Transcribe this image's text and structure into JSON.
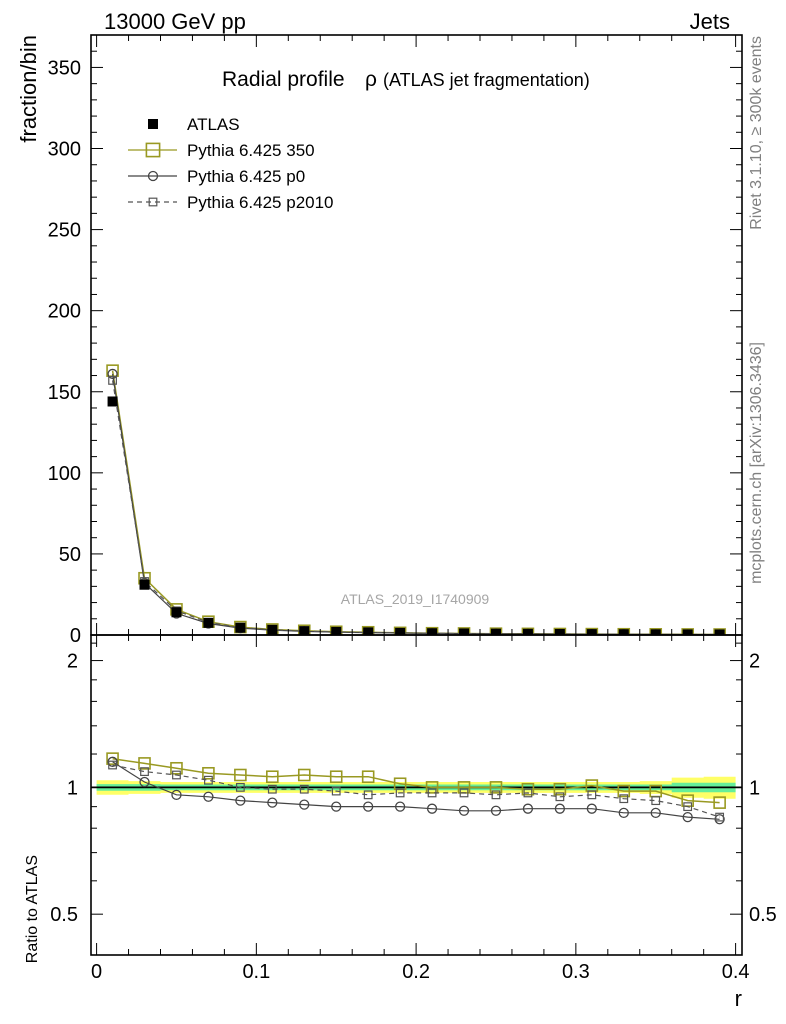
{
  "header": {
    "energy_label": "13000 GeV pp",
    "process_label": "Jets"
  },
  "side_labels": {
    "rivet": "Rivet 3.1.10, ≥ 300k events",
    "mcplots": "mcplots.cern.ch [arXiv:1306.3436]"
  },
  "watermark": "ATLAS_2019_I1740909",
  "chart_data": {
    "type": "scatter",
    "title": "Radial profile",
    "title_symbol": "ρ",
    "subtitle": "(ATLAS jet fragmentation)",
    "xlabel": "r",
    "ylabel": "fraction/bin",
    "ratio_ylabel": "Ratio to ATLAS",
    "xlim": [
      -0.0035,
      0.404
    ],
    "ylim": [
      0,
      370
    ],
    "ratio_ylim": [
      0.4,
      2.3
    ],
    "ratio_scale": "log",
    "grid": false,
    "legend_placement": "top-left",
    "x_ticks": [
      0,
      0.1,
      0.2,
      0.3,
      0.4
    ],
    "x_tick_labels": [
      "0",
      "0.1",
      "0.2",
      "0.3",
      "0.4"
    ],
    "y_ticks": [
      0,
      50,
      100,
      150,
      200,
      250,
      300,
      350
    ],
    "y_tick_labels": [
      "0",
      "50",
      "100",
      "150",
      "200",
      "250",
      "300",
      "350"
    ],
    "ratio_ticks": [
      0.5,
      1,
      2
    ],
    "ratio_tick_labels": [
      "0.5",
      "1",
      "2"
    ],
    "x": [
      0.01,
      0.03,
      0.05,
      0.07,
      0.09,
      0.11,
      0.13,
      0.15,
      0.17,
      0.19,
      0.21,
      0.23,
      0.25,
      0.27,
      0.29,
      0.31,
      0.33,
      0.35,
      0.37,
      0.39
    ],
    "reference_band": {
      "inner_half_width": [
        0.018,
        0.018,
        0.016,
        0.016,
        0.016,
        0.016,
        0.016,
        0.016,
        0.016,
        0.016,
        0.016,
        0.016,
        0.016,
        0.016,
        0.016,
        0.016,
        0.016,
        0.016,
        0.026,
        0.026
      ],
      "outer_half_width": [
        0.04,
        0.035,
        0.03,
        0.03,
        0.03,
        0.03,
        0.03,
        0.03,
        0.03,
        0.03,
        0.03,
        0.03,
        0.03,
        0.03,
        0.03,
        0.03,
        0.03,
        0.035,
        0.055,
        0.06
      ],
      "inner_color": "#66ee99",
      "outer_color": "#ffff66"
    },
    "series": [
      {
        "name": "ATLAS",
        "style": "data",
        "color": "#000000",
        "values": [
          144,
          31,
          14,
          7.5,
          4.5,
          3.2,
          2.4,
          1.9,
          1.6,
          1.3,
          1.1,
          0.95,
          0.82,
          0.72,
          0.63,
          0.55,
          0.48,
          0.42,
          0.37,
          0.33
        ]
      },
      {
        "name": "Pythia 6.425 350",
        "style": "open-square",
        "color": "#999922",
        "values": [
          163,
          35,
          15.8,
          8.2,
          4.9,
          3.4,
          2.6,
          2.0,
          1.7,
          1.33,
          1.1,
          0.95,
          0.82,
          0.71,
          0.63,
          0.56,
          0.475,
          0.41,
          0.345,
          0.305
        ],
        "ratio": [
          1.17,
          1.14,
          1.11,
          1.08,
          1.07,
          1.06,
          1.07,
          1.06,
          1.06,
          1.02,
          1.0,
          1.0,
          1.0,
          0.99,
          0.99,
          1.01,
          0.98,
          0.98,
          0.93,
          0.92
        ]
      },
      {
        "name": "Pythia 6.425 p0",
        "style": "open-circle",
        "color": "#444444",
        "values": [
          161,
          32,
          13.3,
          7.1,
          4.2,
          3.0,
          2.2,
          1.74,
          1.47,
          1.21,
          1.0,
          0.86,
          0.74,
          0.66,
          0.58,
          0.505,
          0.43,
          0.38,
          0.32,
          0.28
        ],
        "ratio": [
          1.15,
          1.03,
          0.96,
          0.95,
          0.93,
          0.92,
          0.91,
          0.9,
          0.9,
          0.9,
          0.89,
          0.88,
          0.88,
          0.89,
          0.89,
          0.89,
          0.87,
          0.87,
          0.85,
          0.84
        ]
      },
      {
        "name": "Pythia 6.425 p2010",
        "style": "dashed-square",
        "color": "#555555",
        "values": [
          157,
          33,
          14.9,
          7.8,
          4.5,
          3.2,
          2.4,
          1.85,
          1.52,
          1.27,
          1.06,
          0.92,
          0.79,
          0.7,
          0.61,
          0.535,
          0.455,
          0.4,
          0.33,
          0.28
        ],
        "ratio": [
          1.13,
          1.09,
          1.07,
          1.04,
          1.0,
          0.99,
          0.99,
          0.98,
          0.96,
          0.97,
          0.97,
          0.97,
          0.96,
          0.97,
          0.95,
          0.96,
          0.94,
          0.93,
          0.9,
          0.85
        ]
      }
    ]
  }
}
